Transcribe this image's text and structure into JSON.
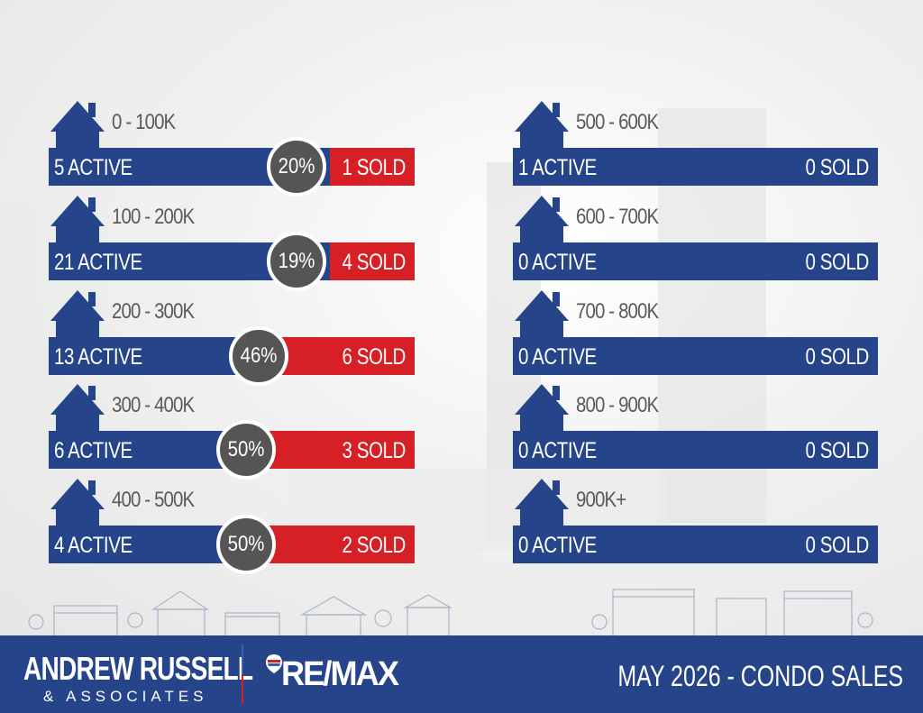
{
  "left_column": [
    {
      "range": "0 - 100K",
      "active": "5 ACTIVE",
      "percent": "20%",
      "sold": "1 SOLD"
    },
    {
      "range": "100 - 200K",
      "active": "21 ACTIVE",
      "percent": "19%",
      "sold": "4 SOLD"
    },
    {
      "range": "200 - 300K",
      "active": "13 ACTIVE",
      "percent": "46%",
      "sold": "6 SOLD"
    },
    {
      "range": "300 - 400K",
      "active": "6 ACTIVE",
      "percent": "50%",
      "sold": "3 SOLD"
    },
    {
      "range": "400 - 500K",
      "active": "4 ACTIVE",
      "percent": "50%",
      "sold": "2 SOLD"
    }
  ],
  "right_column": [
    {
      "range": "500 - 600K",
      "active": "1 ACTIVE",
      "sold": "0 SOLD"
    },
    {
      "range": "600 - 700K",
      "active": "0 ACTIVE",
      "sold": "0 SOLD"
    },
    {
      "range": "700 - 800K",
      "active": "0 ACTIVE",
      "sold": "0 SOLD"
    },
    {
      "range": "800 - 900K",
      "active": "0 ACTIVE",
      "sold": "0 SOLD"
    },
    {
      "range": "900K+",
      "active": "0 ACTIVE",
      "sold": "0 SOLD"
    }
  ],
  "footer": {
    "brand_name": "ANDREW RUSSELL",
    "brand_sub": "& ASSOCIATES",
    "remax": "RE/MAX",
    "title": "MAY 2026 -  CONDO SALES"
  },
  "colors": {
    "navy": "#26448a",
    "red": "#d71f26",
    "gray_circle": "#555555"
  },
  "icons": [
    "house-icon",
    "remax-balloon-icon"
  ]
}
